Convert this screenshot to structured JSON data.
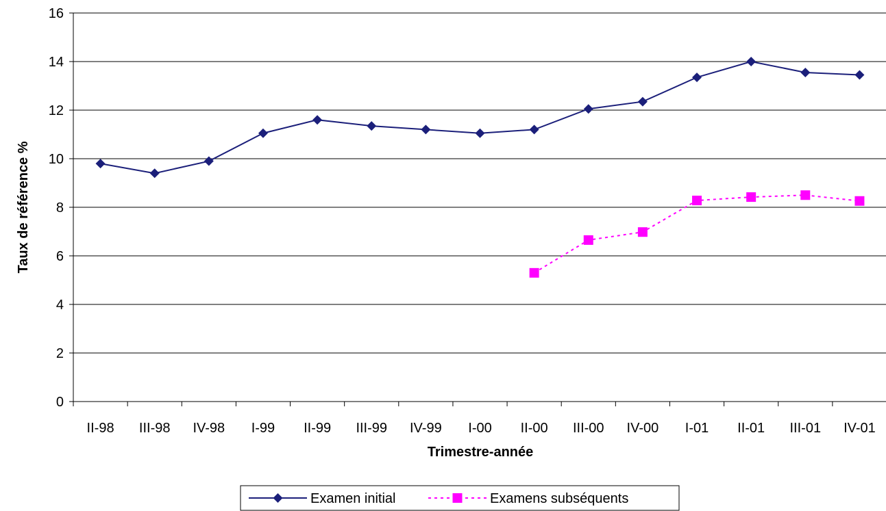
{
  "chart_data": {
    "type": "line",
    "categories": [
      "II-98",
      "III-98",
      "IV-98",
      "I-99",
      "II-99",
      "III-99",
      "IV-99",
      "I-00",
      "II-00",
      "III-00",
      "IV-00",
      "I-01",
      "II-01",
      "III-01",
      "IV-01"
    ],
    "series": [
      {
        "name": "Examen initial",
        "color": "#1b1f7a",
        "marker": "diamond",
        "line_style": "solid",
        "values": [
          9.8,
          9.4,
          9.9,
          11.05,
          11.6,
          11.35,
          11.2,
          11.05,
          11.2,
          12.05,
          12.35,
          13.35,
          14.0,
          13.55,
          13.45
        ]
      },
      {
        "name": "Examens subséquents",
        "color": "#ff00ff",
        "marker": "square",
        "line_style": "dashed",
        "values": [
          null,
          null,
          null,
          null,
          null,
          null,
          null,
          null,
          5.3,
          6.65,
          6.98,
          8.28,
          8.42,
          8.5,
          8.26
        ]
      }
    ],
    "title": "",
    "xlabel": "Trimestre-année",
    "ylabel": "Taux de référence %",
    "ylim": [
      0,
      16
    ],
    "yticks": [
      "0",
      "2",
      "4",
      "6",
      "8",
      "10",
      "12",
      "14",
      "16"
    ],
    "grid": true,
    "legend_position": "bottom"
  }
}
